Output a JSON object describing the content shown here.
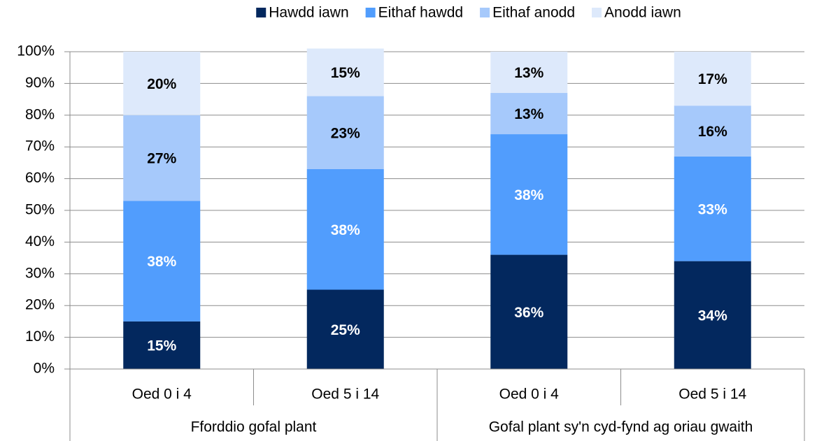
{
  "chart_data": {
    "type": "stacked_bar",
    "categories": [
      "Oed 0 i 4",
      "Oed 5 i 14",
      "Oed 0 i 4",
      "Oed 5 i 14"
    ],
    "groups": [
      "Fforddio gofal plant",
      "Gofal plant sy'n cyd-fynd ag oriau gwaith"
    ],
    "series": [
      {
        "name": "Hawdd iawn",
        "color": "#03285e",
        "label_color": "#ffffff",
        "values": [
          15,
          25,
          36,
          34
        ],
        "value_labels": [
          "15%",
          "25%",
          "36%",
          "34%"
        ]
      },
      {
        "name": "Eithaf hawdd",
        "color": "#519dfd",
        "label_color": "#ffffff",
        "values": [
          38,
          38,
          38,
          33
        ],
        "value_labels": [
          "38%",
          "38%",
          "38%",
          "33%"
        ]
      },
      {
        "name": "Eithaf anodd",
        "color": "#a6c9fb",
        "label_color": "#000000",
        "values": [
          27,
          23,
          13,
          16
        ],
        "value_labels": [
          "27%",
          "23%",
          "13%",
          "16%"
        ]
      },
      {
        "name": "Anodd iawn",
        "color": "#dde9fb",
        "label_color": "#000000",
        "values": [
          20,
          15,
          13,
          17
        ],
        "value_labels": [
          "20%",
          "15%",
          "13%",
          "17%"
        ]
      }
    ],
    "ylim": [
      0,
      100
    ],
    "yticks": [
      {
        "value": 0,
        "label": "0%"
      },
      {
        "value": 10,
        "label": "10%"
      },
      {
        "value": 20,
        "label": "20%"
      },
      {
        "value": 30,
        "label": "30%"
      },
      {
        "value": 40,
        "label": "40%"
      },
      {
        "value": 50,
        "label": "50%"
      },
      {
        "value": 60,
        "label": "60%"
      },
      {
        "value": 70,
        "label": "70%"
      },
      {
        "value": 80,
        "label": "80%"
      },
      {
        "value": 90,
        "label": "90%"
      },
      {
        "value": 100,
        "label": "100%"
      }
    ],
    "grid": true,
    "legend": "top"
  }
}
